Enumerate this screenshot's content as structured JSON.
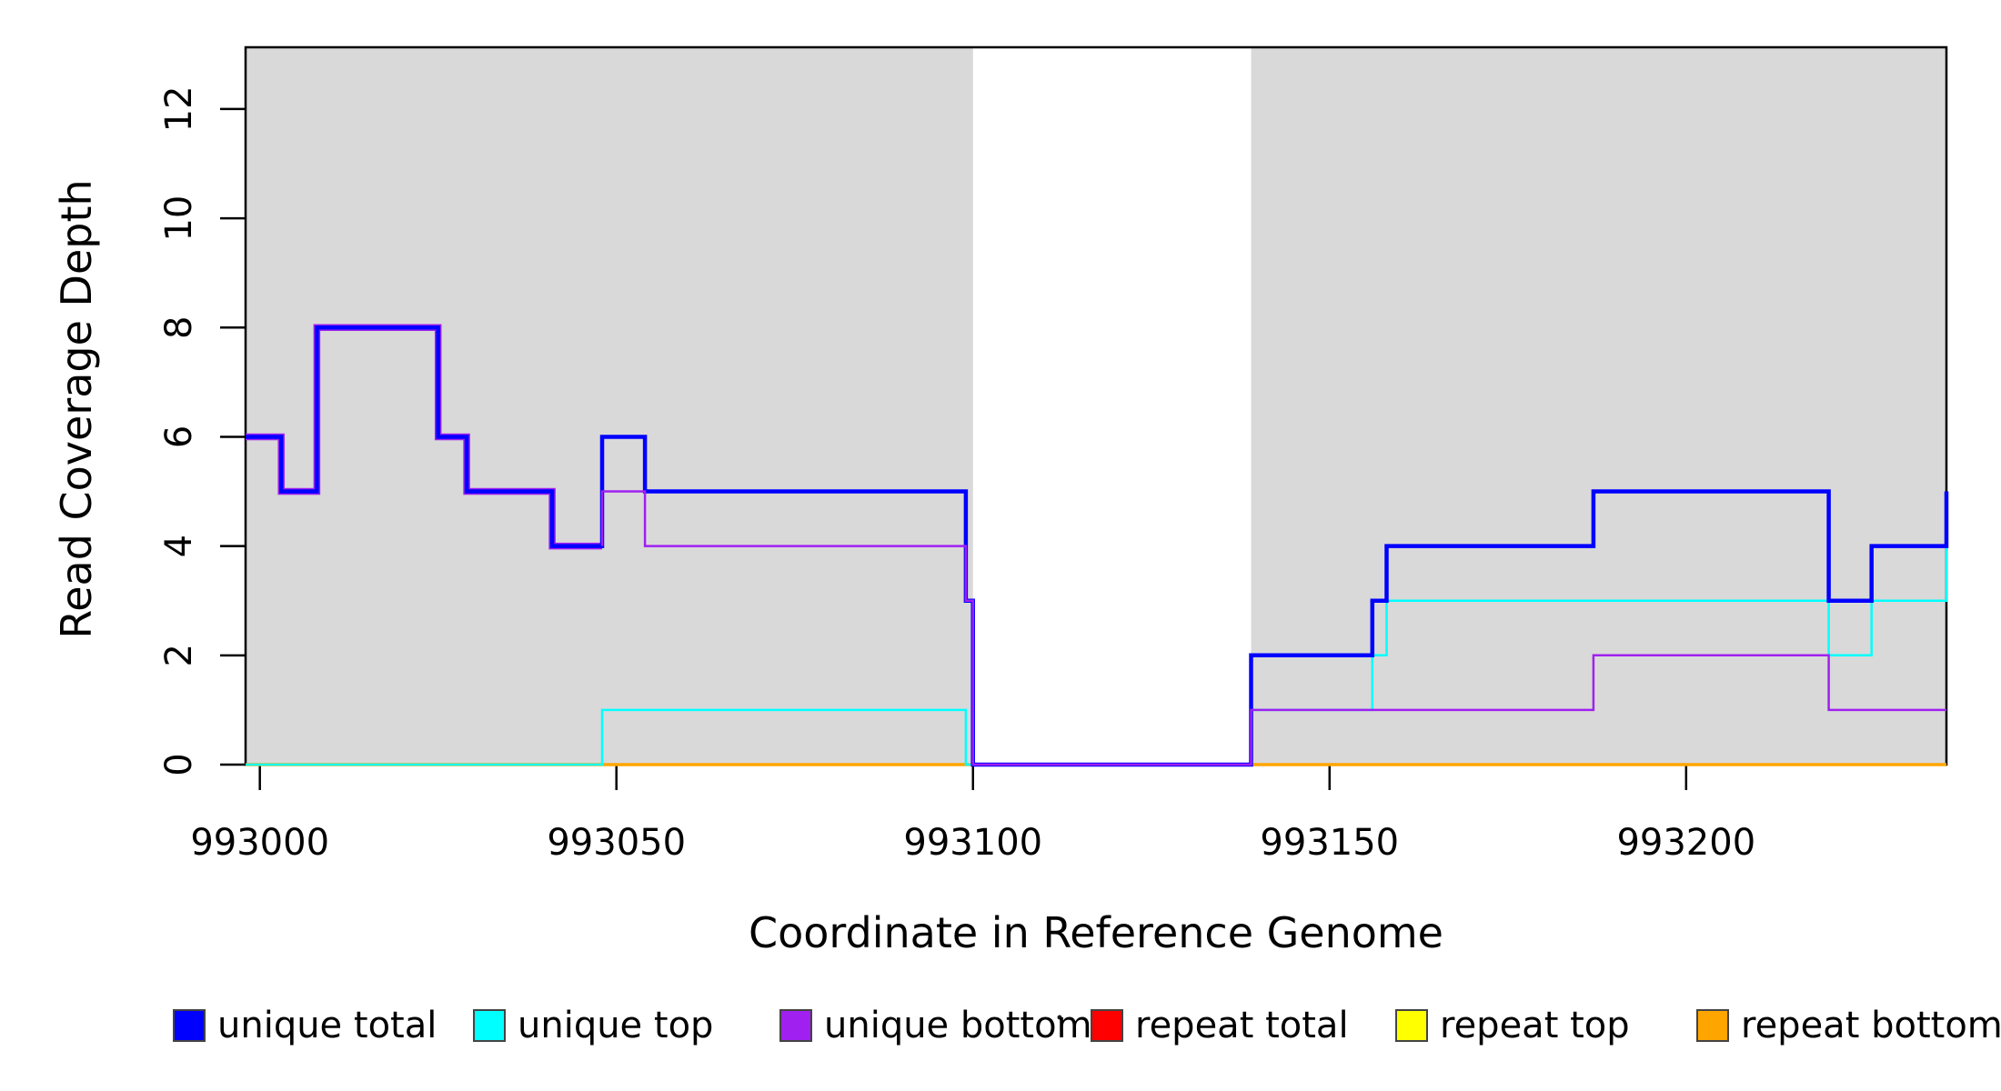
{
  "figure": {
    "title": "",
    "ylabel": "Read Coverage Depth",
    "xlabel": "Coordinate in Reference Genome",
    "background_color": "#ffffff",
    "shaded_band_color": "#d9d9d9",
    "stray_mark": "."
  },
  "chart_data": {
    "type": "line",
    "step": "post",
    "title": "",
    "xlabel": "Coordinate in Reference Genome",
    "ylabel": "Read Coverage Depth",
    "xlim": [
      992998,
      993236.5
    ],
    "ylim": [
      0,
      13.13
    ],
    "x_ticks": [
      993000,
      993050,
      993100,
      993150,
      993200
    ],
    "y_ticks": [
      0,
      2,
      4,
      6,
      8,
      10,
      12
    ],
    "grid": false,
    "legend_position": "bottom",
    "shaded_regions": [
      {
        "from": 992998,
        "to": 993100
      },
      {
        "from": 993139,
        "to": 993236.5
      }
    ],
    "gap_region": {
      "from": 993100,
      "to": 993139,
      "note": "white unshaded gap where all coverage is 0"
    },
    "series": [
      {
        "name": "unique total",
        "color": "#0000ff",
        "points": [
          [
            992998,
            6
          ],
          [
            993003,
            5
          ],
          [
            993008,
            8
          ],
          [
            993025,
            6
          ],
          [
            993029,
            5
          ],
          [
            993041,
            4
          ],
          [
            993048,
            6
          ],
          [
            993054,
            5
          ],
          [
            993099,
            3
          ],
          [
            993100,
            0
          ],
          [
            993139,
            2
          ],
          [
            993156,
            3
          ],
          [
            993158,
            4
          ],
          [
            993187,
            5
          ],
          [
            993220,
            3
          ],
          [
            993226,
            4
          ],
          [
            993236.5,
            5
          ]
        ]
      },
      {
        "name": "unique top",
        "color": "#00ffff",
        "points": [
          [
            992998,
            0
          ],
          [
            993048,
            1
          ],
          [
            993099,
            0
          ],
          [
            993139,
            1
          ],
          [
            993156,
            2
          ],
          [
            993158,
            3
          ],
          [
            993220,
            2
          ],
          [
            993226,
            3
          ],
          [
            993236.5,
            4
          ]
        ]
      },
      {
        "name": "unique bottom",
        "color": "#a020f0",
        "points": [
          [
            992998,
            6
          ],
          [
            993003,
            5
          ],
          [
            993008,
            8
          ],
          [
            993025,
            6
          ],
          [
            993029,
            5
          ],
          [
            993041,
            4
          ],
          [
            993048,
            5
          ],
          [
            993054,
            4
          ],
          [
            993099,
            3
          ],
          [
            993100,
            0
          ],
          [
            993139,
            1
          ],
          [
            993187,
            2
          ],
          [
            993220,
            1
          ],
          [
            993236.5,
            1
          ]
        ]
      },
      {
        "name": "repeat total",
        "color": "#ff0000",
        "points": [
          [
            992998,
            0
          ],
          [
            993236.5,
            0
          ]
        ]
      },
      {
        "name": "repeat top",
        "color": "#ffff00",
        "points": [
          [
            992998,
            0
          ],
          [
            993236.5,
            0
          ]
        ]
      },
      {
        "name": "repeat bottom",
        "color": "#ffa500",
        "points": [
          [
            992998,
            0
          ],
          [
            993236.5,
            0
          ]
        ]
      }
    ],
    "legend": [
      {
        "label": "unique total",
        "color": "#0000ff"
      },
      {
        "label": "unique top",
        "color": "#00ffff"
      },
      {
        "label": "unique bottom",
        "color": "#a020f0"
      },
      {
        "label": "repeat total",
        "color": "#ff0000"
      },
      {
        "label": "repeat top",
        "color": "#ffff00"
      },
      {
        "label": "repeat bottom",
        "color": "#ffa500"
      }
    ]
  }
}
